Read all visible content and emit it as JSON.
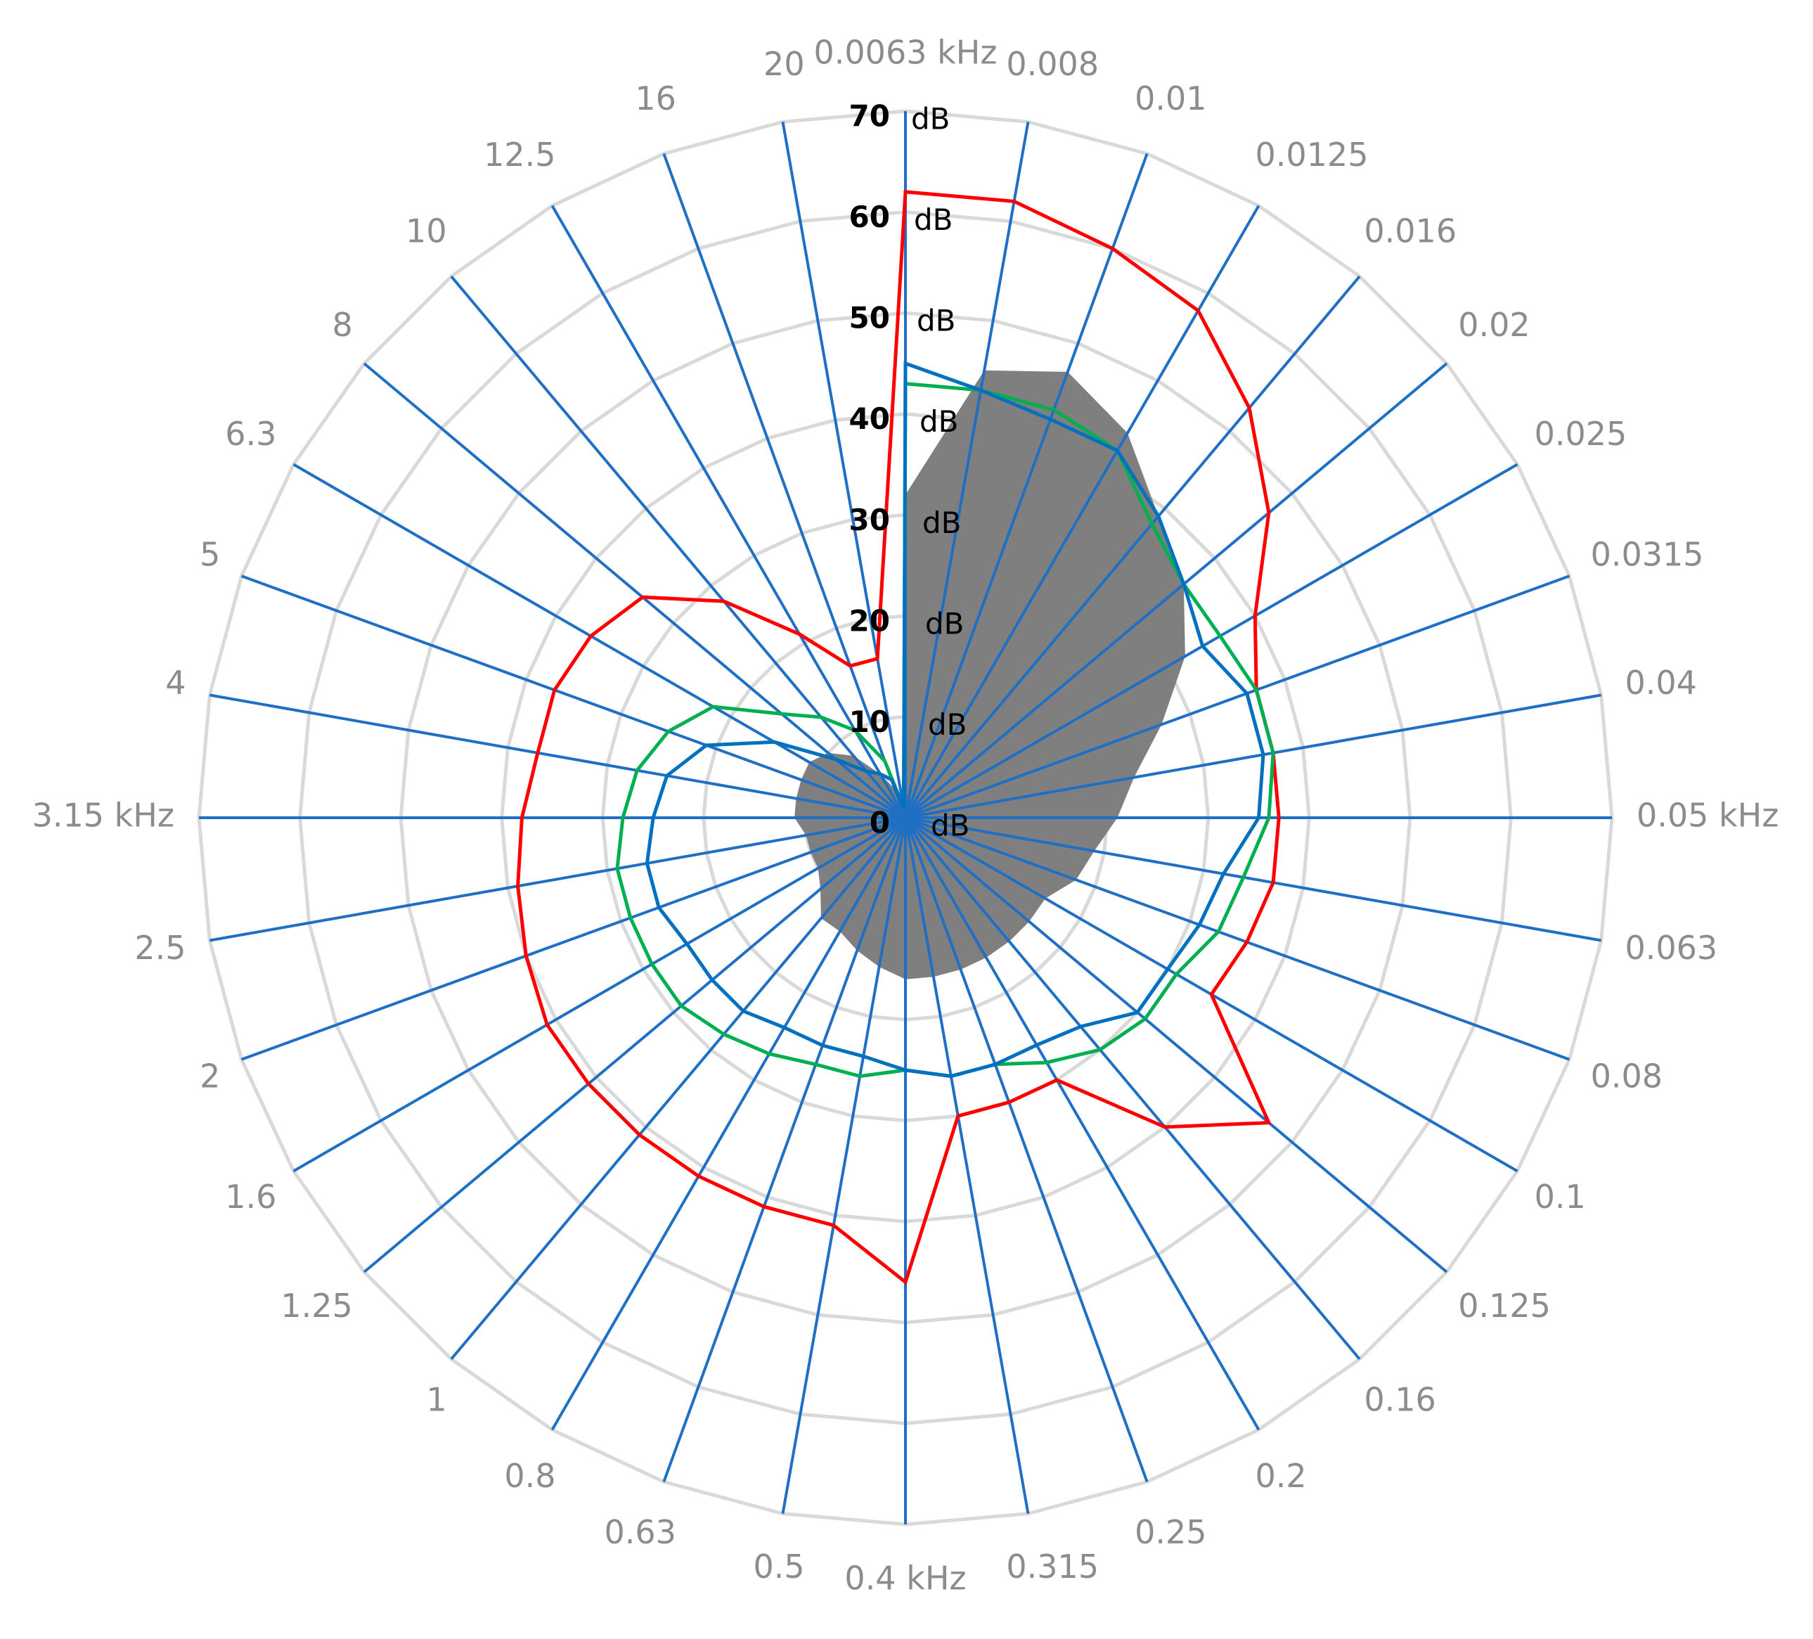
{
  "chart_data": {
    "type": "radar",
    "title": "",
    "categories": [
      "0.0063 kHz",
      "0.008",
      "0.01",
      "0.0125",
      "0.016",
      "0.02",
      "0.025",
      "0.0315",
      "0.04",
      "0.05 kHz",
      "0.063",
      "0.08",
      "0.1",
      "0.125",
      "0.16",
      "0.2",
      "0.25",
      "0.315",
      "0.4 kHz",
      "0.5",
      "0.63",
      "0.8",
      "1",
      "1.25",
      "1.6",
      "2",
      "2.5",
      "3.15 kHz",
      "4",
      "5",
      "6.3",
      "8",
      "10",
      "12.5",
      "16",
      "20"
    ],
    "radial_axis": {
      "min": 0,
      "max": 70,
      "step": 10,
      "unit": "dB",
      "ticks": [
        "0",
        "10",
        "20",
        "30",
        "40",
        "50",
        "60",
        "70"
      ]
    },
    "grid": true,
    "colors": {
      "spokes": "#1f6fc5",
      "rings": "#d9d9d9",
      "red": "#ff0000",
      "green": "#00b050",
      "blue": "#0070c0",
      "area": "#7f7f7f"
    },
    "series": [
      {
        "style": "area",
        "color": "#7f7f7f",
        "values": [
          32,
          45,
          47,
          44,
          39,
          36,
          32,
          27,
          23,
          21,
          19,
          18,
          16,
          16,
          16,
          16,
          16,
          16,
          16,
          15,
          14,
          13,
          13,
          11,
          10,
          10,
          10,
          11,
          11,
          11,
          11,
          10,
          8,
          5,
          3,
          2
        ]
      },
      {
        "style": "line",
        "color": "#ff0000",
        "values": [
          62,
          62,
          60,
          58,
          53,
          47,
          40,
          37,
          37,
          37,
          37,
          36,
          35,
          47,
          40,
          30,
          30,
          30,
          46,
          41,
          41,
          41,
          41,
          41,
          41,
          40,
          39,
          38,
          37,
          37,
          36,
          34,
          28,
          21,
          16,
          16
        ]
      },
      {
        "style": "line",
        "color": "#00b050",
        "values": [
          43,
          43,
          43,
          42,
          38,
          36,
          36,
          37,
          37,
          36,
          34,
          33,
          31,
          31,
          30,
          28,
          26,
          26,
          25,
          26,
          26,
          27,
          28,
          29,
          29,
          29,
          29,
          28,
          27,
          25,
          22,
          16,
          13,
          10,
          6,
          1
        ]
      },
      {
        "style": "line",
        "color": "#0070c0",
        "values": [
          45,
          43,
          42,
          42,
          39,
          36,
          34,
          36,
          36,
          35,
          32,
          31,
          30,
          30,
          27,
          26,
          26,
          26,
          25,
          24,
          24,
          24,
          25,
          25,
          25,
          26,
          26,
          25,
          24,
          21,
          15,
          9,
          6,
          5,
          4,
          1
        ]
      }
    ]
  }
}
